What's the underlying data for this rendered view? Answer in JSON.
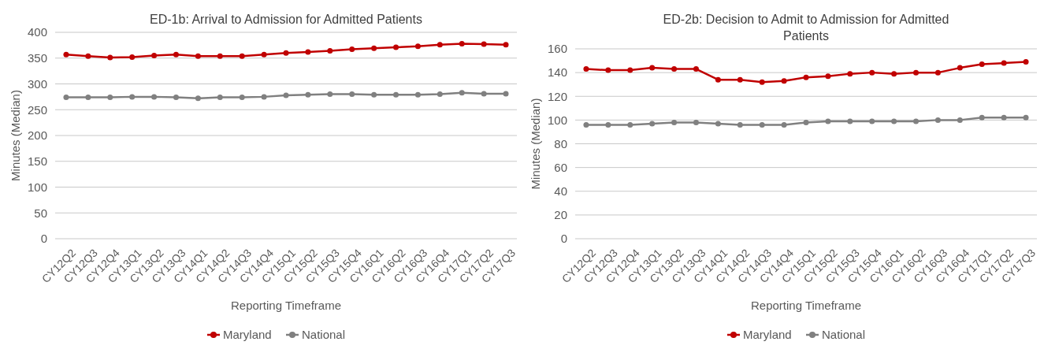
{
  "chart_data": [
    {
      "type": "line",
      "title": "ED-1b: Arrival to Admission for Admitted Patients",
      "xlabel": "Reporting Timeframe",
      "ylabel": "Minutes (Median)",
      "categories": [
        "CY12Q2",
        "CY12Q3",
        "CY12Q4",
        "CY13Q1",
        "CY13Q2",
        "CY13Q3",
        "CY14Q1",
        "CY14Q2",
        "CY14Q3",
        "CY14Q4",
        "CY15Q1",
        "CY15Q2",
        "CY15Q3",
        "CY15Q4",
        "CY16Q1",
        "CY16Q2",
        "CY16Q3",
        "CY16Q4",
        "CY17Q1",
        "CY17Q2",
        "CY17Q3"
      ],
      "series": [
        {
          "name": "Maryland",
          "color": "#c00000",
          "values": [
            357,
            354,
            351,
            352,
            355,
            357,
            354,
            354,
            354,
            357,
            360,
            362,
            364,
            367,
            369,
            371,
            373,
            376,
            378,
            377,
            376
          ]
        },
        {
          "name": "National",
          "color": "#808080",
          "values": [
            274,
            274,
            274,
            275,
            275,
            274,
            272,
            274,
            274,
            275,
            278,
            279,
            280,
            280,
            279,
            279,
            279,
            280,
            283,
            281,
            281
          ]
        }
      ],
      "ylim": [
        0,
        400
      ],
      "yticks": [
        0,
        50,
        100,
        150,
        200,
        250,
        300,
        350,
        400
      ],
      "grid": "y",
      "legend": "bottom",
      "marker": "circle",
      "line_style": "solid"
    },
    {
      "type": "line",
      "title": "ED-2b: Decision to Admit to Admission for Admitted Patients",
      "xlabel": "Reporting Timeframe",
      "ylabel": "Minutes (Median)",
      "categories": [
        "CY12Q2",
        "CY12Q3",
        "CY12Q4",
        "CY13Q1",
        "CY13Q2",
        "CY13Q3",
        "CY14Q1",
        "CY14Q2",
        "CY14Q3",
        "CY14Q4",
        "CY15Q1",
        "CY15Q2",
        "CY15Q3",
        "CY15Q4",
        "CY16Q1",
        "CY16Q2",
        "CY16Q3",
        "CY16Q4",
        "CY17Q1",
        "CY17Q2",
        "CY17Q3"
      ],
      "series": [
        {
          "name": "Maryland",
          "color": "#c00000",
          "values": [
            143,
            142,
            142,
            144,
            143,
            143,
            134,
            134,
            132,
            133,
            136,
            137,
            139,
            140,
            139,
            140,
            140,
            144,
            147,
            148,
            149
          ]
        },
        {
          "name": "National",
          "color": "#808080",
          "values": [
            96,
            96,
            96,
            97,
            98,
            98,
            97,
            96,
            96,
            96,
            98,
            99,
            99,
            99,
            99,
            99,
            100,
            100,
            102,
            102,
            102
          ]
        }
      ],
      "ylim": [
        0,
        160
      ],
      "yticks": [
        0,
        20,
        40,
        60,
        80,
        100,
        120,
        140,
        160
      ],
      "grid": "y",
      "legend": "bottom",
      "marker": "circle",
      "line_style": "solid"
    }
  ]
}
